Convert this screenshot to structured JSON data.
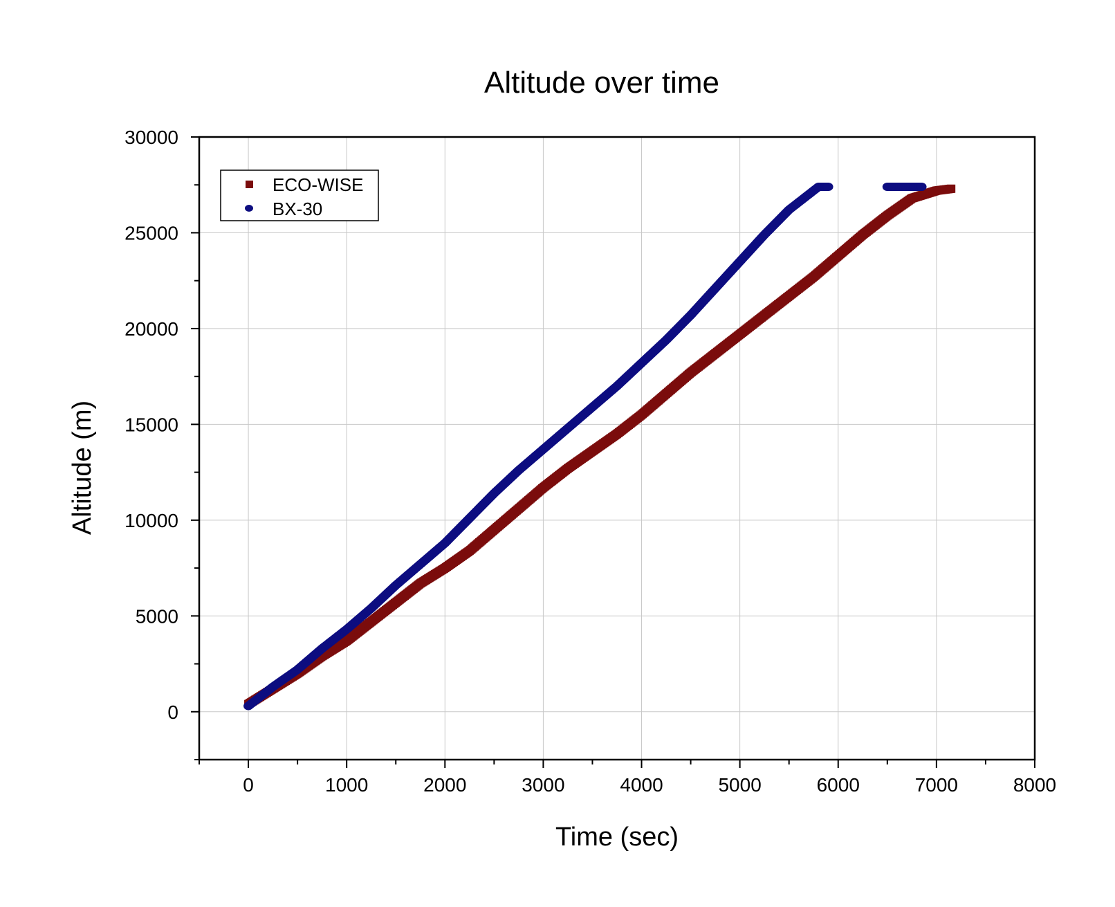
{
  "chart_data": {
    "type": "scatter",
    "title": "Altitude over time",
    "xlabel": "Time (sec)",
    "ylabel": "Altitude (m)",
    "xlim": [
      -500,
      8000
    ],
    "ylim": [
      -2500,
      30000
    ],
    "xticks": [
      0,
      1000,
      2000,
      3000,
      4000,
      5000,
      6000,
      7000,
      8000
    ],
    "yticks": [
      0,
      5000,
      10000,
      15000,
      20000,
      25000,
      30000
    ],
    "grid": true,
    "legend_position": "top-left",
    "series": [
      {
        "name": "ECO-WISE",
        "color": "#7b0c0c",
        "marker": "square",
        "x": [
          0,
          250,
          500,
          750,
          1000,
          1250,
          1500,
          1750,
          2000,
          2250,
          2500,
          2750,
          3000,
          3250,
          3500,
          3750,
          4000,
          4250,
          4500,
          4750,
          5000,
          5250,
          5500,
          5750,
          6000,
          6250,
          6500,
          6750,
          7000,
          7150
        ],
        "y": [
          400,
          1200,
          2000,
          2900,
          3700,
          4700,
          5700,
          6700,
          7500,
          8400,
          9500,
          10600,
          11700,
          12700,
          13600,
          14500,
          15500,
          16600,
          17700,
          18700,
          19700,
          20700,
          21700,
          22700,
          23800,
          24900,
          25900,
          26800,
          27200,
          27300
        ]
      },
      {
        "name": "BX-30",
        "color": "#0d0d80",
        "marker": "circle",
        "x": [
          0,
          100,
          250,
          500,
          750,
          1000,
          1250,
          1500,
          1750,
          2000,
          2250,
          2500,
          2750,
          3000,
          3250,
          3500,
          3750,
          4000,
          4250,
          4500,
          4750,
          5000,
          5250,
          5500,
          5700,
          5800,
          5900,
          6500,
          6550,
          6800,
          6850
        ],
        "y": [
          300,
          700,
          1300,
          2200,
          3300,
          4300,
          5400,
          6600,
          7700,
          8800,
          10100,
          11400,
          12600,
          13700,
          14800,
          15900,
          17000,
          18200,
          19400,
          20700,
          22100,
          23500,
          24900,
          26200,
          27000,
          27400,
          27400,
          27400,
          27400,
          27400,
          27400
        ]
      }
    ]
  }
}
